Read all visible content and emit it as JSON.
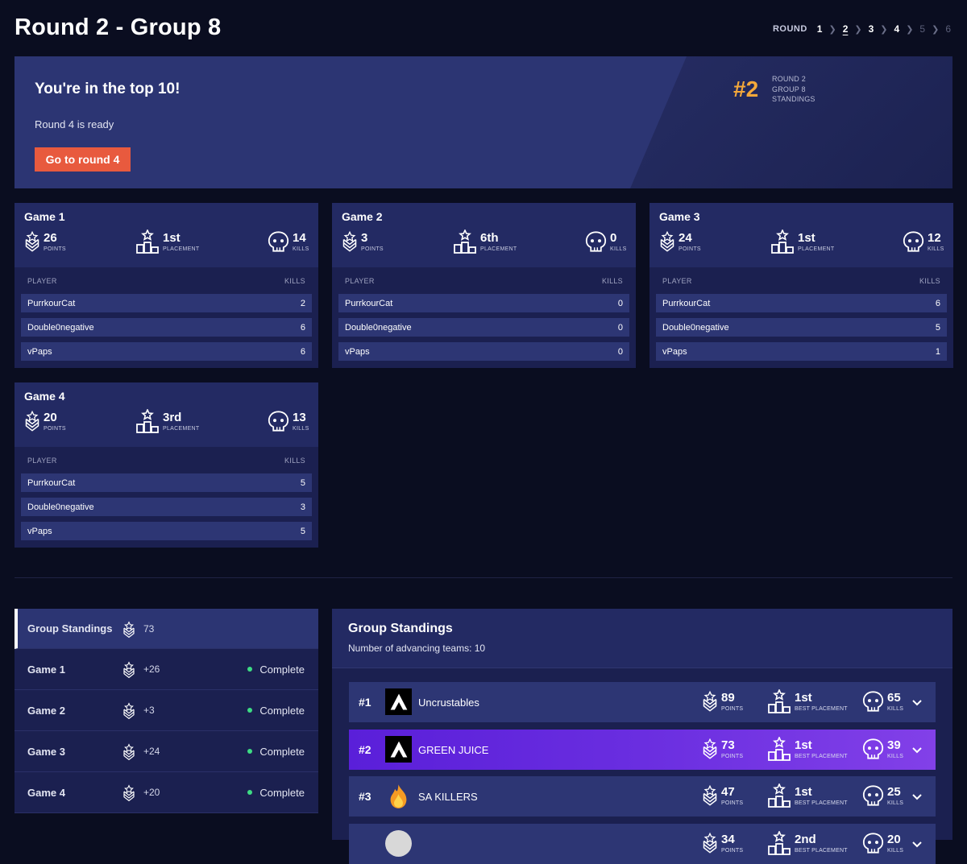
{
  "page": {
    "title": "Round 2 - Group 8"
  },
  "round_nav": {
    "label": "ROUND",
    "rounds": [
      "1",
      "2",
      "3",
      "4",
      "5",
      "6"
    ],
    "current": "2"
  },
  "banner": {
    "headline": "You're in the top 10!",
    "subtext": "Round 4 is ready",
    "button": "Go to round 4",
    "rank": "#2",
    "rank_meta": [
      "ROUND 2",
      "GROUP 8",
      "STANDINGS"
    ]
  },
  "labels": {
    "points": "POINTS",
    "placement": "PLACEMENT",
    "kills": "KILLS",
    "player": "PLAYER",
    "best_placement": "BEST PLACEMENT"
  },
  "games": [
    {
      "title": "Game 1",
      "points": "26",
      "placement": "1st",
      "kills": "14",
      "players": [
        {
          "name": "PurrkourCat",
          "kills": "2"
        },
        {
          "name": "Double0negative",
          "kills": "6"
        },
        {
          "name": "vPaps",
          "kills": "6"
        }
      ]
    },
    {
      "title": "Game 2",
      "points": "3",
      "placement": "6th",
      "kills": "0",
      "players": [
        {
          "name": "PurrkourCat",
          "kills": "0"
        },
        {
          "name": "Double0negative",
          "kills": "0"
        },
        {
          "name": "vPaps",
          "kills": "0"
        }
      ]
    },
    {
      "title": "Game 3",
      "points": "24",
      "placement": "1st",
      "kills": "12",
      "players": [
        {
          "name": "PurrkourCat",
          "kills": "6"
        },
        {
          "name": "Double0negative",
          "kills": "5"
        },
        {
          "name": "vPaps",
          "kills": "1"
        }
      ]
    },
    {
      "title": "Game 4",
      "points": "20",
      "placement": "3rd",
      "kills": "13",
      "players": [
        {
          "name": "PurrkourCat",
          "kills": "5"
        },
        {
          "name": "Double0negative",
          "kills": "3"
        },
        {
          "name": "vPaps",
          "kills": "5"
        }
      ]
    }
  ],
  "sidebar": {
    "items": [
      {
        "name": "Group Standings",
        "points": "73",
        "status": ""
      },
      {
        "name": "Game 1",
        "points": "+26",
        "status": "Complete"
      },
      {
        "name": "Game 2",
        "points": "+3",
        "status": "Complete"
      },
      {
        "name": "Game 3",
        "points": "+24",
        "status": "Complete"
      },
      {
        "name": "Game 4",
        "points": "+20",
        "status": "Complete"
      }
    ]
  },
  "standings": {
    "title": "Group Standings",
    "subtitle": "Number of advancing teams: 10",
    "teams": [
      {
        "rank": "#1",
        "name": "Uncrustables",
        "points": "89",
        "best_placement": "1st",
        "kills": "65",
        "logo": "apex-logo-icon",
        "highlight": false
      },
      {
        "rank": "#2",
        "name": "GREEN JUICE",
        "points": "73",
        "best_placement": "1st",
        "kills": "39",
        "logo": "apex-logo-icon",
        "highlight": true
      },
      {
        "rank": "#3",
        "name": "SA KILLERS",
        "points": "47",
        "best_placement": "1st",
        "kills": "25",
        "logo": "fire-logo-icon",
        "highlight": false
      },
      {
        "rank": "",
        "name": "",
        "points": "34",
        "best_placement": "2nd",
        "kills": "20",
        "logo": "team-logo-icon",
        "highlight": false
      }
    ]
  },
  "colors": {
    "background": "#0a0d20",
    "banner": "#2c3573",
    "card": "#1b2050",
    "row": "#2d3674",
    "accent_orange": "#e85a3e",
    "rank_gold": "#f4a83a",
    "highlight_purple": "#6a2ee0",
    "status_green": "#3ddc84"
  }
}
